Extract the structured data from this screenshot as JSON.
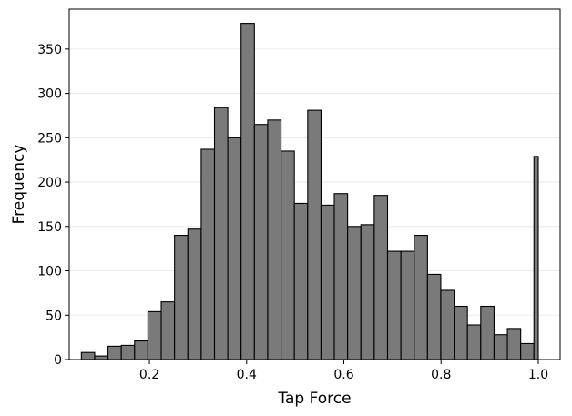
{
  "chart_data": {
    "type": "bar",
    "title": "",
    "xlabel": "Tap Force",
    "ylabel": "Frequency",
    "xlim": [
      0.035,
      1.045
    ],
    "ylim": [
      0,
      395
    ],
    "grid": "horizontal",
    "bar_color": "#7a7a7a",
    "edge_color": "#000000",
    "grid_color": "#e6e6e6",
    "x_ticks": [
      0.2,
      0.4,
      0.6,
      0.8,
      1.0
    ],
    "x_tick_labels": [
      "0.2",
      "0.4",
      "0.6",
      "0.8",
      "1.0"
    ],
    "y_ticks": [
      0,
      50,
      100,
      150,
      200,
      250,
      300,
      350
    ],
    "y_tick_labels": [
      "0",
      "50",
      "100",
      "150",
      "200",
      "250",
      "300",
      "350"
    ],
    "bins": [
      {
        "x0": 0.06,
        "x1": 0.0874,
        "count": 8
      },
      {
        "x0": 0.0874,
        "x1": 0.1148,
        "count": 4
      },
      {
        "x0": 0.1148,
        "x1": 0.1421,
        "count": 15
      },
      {
        "x0": 0.1421,
        "x1": 0.1695,
        "count": 16
      },
      {
        "x0": 0.1695,
        "x1": 0.1969,
        "count": 21
      },
      {
        "x0": 0.1969,
        "x1": 0.2243,
        "count": 54
      },
      {
        "x0": 0.2243,
        "x1": 0.2517,
        "count": 65
      },
      {
        "x0": 0.2517,
        "x1": 0.2791,
        "count": 140
      },
      {
        "x0": 0.2791,
        "x1": 0.3065,
        "count": 147
      },
      {
        "x0": 0.3065,
        "x1": 0.3339,
        "count": 237
      },
      {
        "x0": 0.3339,
        "x1": 0.3612,
        "count": 284
      },
      {
        "x0": 0.3612,
        "x1": 0.3886,
        "count": 250
      },
      {
        "x0": 0.3886,
        "x1": 0.416,
        "count": 379
      },
      {
        "x0": 0.416,
        "x1": 0.4434,
        "count": 265
      },
      {
        "x0": 0.4434,
        "x1": 0.4708,
        "count": 270
      },
      {
        "x0": 0.4708,
        "x1": 0.4982,
        "count": 235
      },
      {
        "x0": 0.4982,
        "x1": 0.5256,
        "count": 176
      },
      {
        "x0": 0.5256,
        "x1": 0.553,
        "count": 281
      },
      {
        "x0": 0.553,
        "x1": 0.5803,
        "count": 174
      },
      {
        "x0": 0.5803,
        "x1": 0.6077,
        "count": 187
      },
      {
        "x0": 0.6077,
        "x1": 0.6351,
        "count": 150
      },
      {
        "x0": 0.6351,
        "x1": 0.6625,
        "count": 152
      },
      {
        "x0": 0.6625,
        "x1": 0.6899,
        "count": 185
      },
      {
        "x0": 0.6899,
        "x1": 0.7173,
        "count": 122
      },
      {
        "x0": 0.7173,
        "x1": 0.7447,
        "count": 122
      },
      {
        "x0": 0.7447,
        "x1": 0.7721,
        "count": 140
      },
      {
        "x0": 0.7721,
        "x1": 0.7994,
        "count": 96
      },
      {
        "x0": 0.7994,
        "x1": 0.8268,
        "count": 78
      },
      {
        "x0": 0.8268,
        "x1": 0.8542,
        "count": 60
      },
      {
        "x0": 0.8542,
        "x1": 0.8816,
        "count": 39
      },
      {
        "x0": 0.8816,
        "x1": 0.909,
        "count": 60
      },
      {
        "x0": 0.909,
        "x1": 0.9364,
        "count": 28
      },
      {
        "x0": 0.9364,
        "x1": 0.9638,
        "count": 35
      },
      {
        "x0": 0.9638,
        "x1": 0.9911,
        "count": 18
      },
      {
        "x0": 0.9911,
        "x1": 1.0,
        "count": 229
      }
    ]
  }
}
